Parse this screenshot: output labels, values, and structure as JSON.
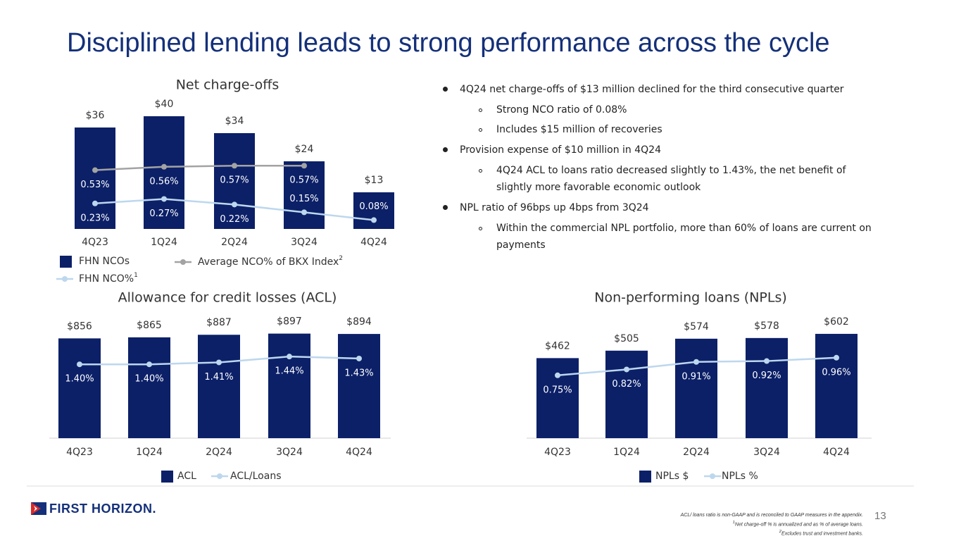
{
  "title": "Disciplined lending leads to strong performance across the cycle",
  "bullets": [
    {
      "text": "4Q24 net charge-offs of $13 million declined for the third consecutive quarter",
      "sub": [
        "Strong NCO ratio of 0.08%",
        "Includes $15 million of recoveries"
      ]
    },
    {
      "text": "Provision expense of $10 million in 4Q24",
      "sub": [
        "4Q24 ACL to loans ratio decreased slightly to 1.43%, the net benefit of slightly more favorable economic outlook"
      ]
    },
    {
      "text": "NPL ratio of 96bps up 4bps from 3Q24",
      "sub": [
        "Within the commercial NPL portfolio, more than 60% of loans are current on payments"
      ]
    }
  ],
  "logo": "FIRST HORIZON.",
  "page_number": "13",
  "footnotes": [
    {
      "text": "ACL/ loans ratio is non-GAAP and is reconciled to GAAP measures in the appendix."
    },
    {
      "mark": "1",
      "text": "Net charge-off % is annualized and as % of average loans."
    },
    {
      "mark": "2",
      "text": "Excludes trust and investment banks."
    }
  ],
  "chart_data": [
    {
      "type": "bar",
      "title": "Net charge-offs",
      "categories": [
        "4Q23",
        "1Q24",
        "2Q24",
        "3Q24",
        "4Q24"
      ],
      "ylim": [
        0,
        50
      ],
      "y2lim": [
        0,
        1.27
      ],
      "series": [
        {
          "name": "FHN NCOs",
          "type": "bar",
          "color": "#0c2068",
          "values": [
            36,
            40,
            34,
            24,
            13
          ],
          "value_labels": [
            "$36",
            "$40",
            "$34",
            "$24",
            "$13"
          ]
        },
        {
          "name": "Average NCO% of BKX Index",
          "footnote_mark": "2",
          "type": "line",
          "axis": "y2",
          "color": "#a3a3a3",
          "values": [
            0.53,
            0.56,
            0.57,
            0.57,
            null
          ],
          "value_labels": [
            "0.53%",
            "0.56%",
            "0.57%",
            "0.57%",
            null
          ]
        },
        {
          "name": "FHN NCO%",
          "footnote_mark": "1",
          "type": "line",
          "axis": "y2",
          "color": "#bdd7ee",
          "values": [
            0.23,
            0.27,
            0.22,
            0.15,
            0.08
          ],
          "value_labels": [
            "0.23%",
            "0.27%",
            "0.22%",
            "0.15%",
            "0.08%"
          ]
        }
      ]
    },
    {
      "type": "bar",
      "title": "Allowance for credit losses (ACL)",
      "categories": [
        "4Q23",
        "1Q24",
        "2Q24",
        "3Q24",
        "4Q24"
      ],
      "ylim": [
        0,
        1100
      ],
      "y2lim": [
        1.02,
        1.68
      ],
      "series": [
        {
          "name": "ACL",
          "type": "bar",
          "color": "#0c2068",
          "values": [
            856,
            865,
            887,
            897,
            894
          ],
          "value_labels": [
            "$856",
            "$865",
            "$887",
            "$897",
            "$894"
          ]
        },
        {
          "name": "ACL/Loans",
          "type": "line",
          "axis": "y2",
          "color": "#bdd7ee",
          "values": [
            1.4,
            1.4,
            1.41,
            1.44,
            1.43
          ],
          "value_labels": [
            "1.40%",
            "1.40%",
            "1.41%",
            "1.44%",
            "1.43%"
          ]
        }
      ]
    },
    {
      "type": "bar",
      "title": "Non-performing loans (NPLs)",
      "categories": [
        "4Q23",
        "1Q24",
        "2Q24",
        "3Q24",
        "4Q24"
      ],
      "ylim": [
        0,
        740
      ],
      "y2lim": [
        0,
        1.53
      ],
      "series": [
        {
          "name": "NPLs $",
          "type": "bar",
          "color": "#0c2068",
          "values": [
            462,
            505,
            574,
            578,
            602
          ],
          "value_labels": [
            "$462",
            "$505",
            "$574",
            "$578",
            "$602"
          ]
        },
        {
          "name": "NPLs %",
          "type": "line",
          "axis": "y2",
          "color": "#bdd7ee",
          "values": [
            0.75,
            0.82,
            0.91,
            0.92,
            0.96
          ],
          "value_labels": [
            "0.75%",
            "0.82%",
            "0.91%",
            "0.92%",
            "0.96%"
          ]
        }
      ]
    }
  ]
}
